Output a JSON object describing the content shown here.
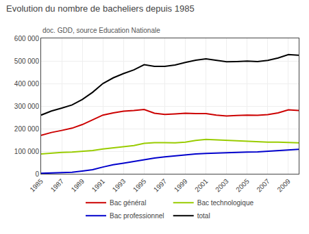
{
  "chart_data": {
    "type": "line",
    "title": "Evolution du nombre de bacheliers depuis 1985",
    "subtitle": "doc. GDD, source Education Nationale",
    "x": [
      1985,
      1986,
      1987,
      1988,
      1989,
      1990,
      1991,
      1992,
      1993,
      1994,
      1995,
      1996,
      1997,
      1998,
      1999,
      2000,
      2001,
      2002,
      2003,
      2004,
      2005,
      2006,
      2007,
      2008,
      2009,
      2010
    ],
    "series": [
      {
        "name": "Bac général",
        "color": "#cc0000",
        "values": [
          170000,
          183000,
          192000,
          202000,
          218000,
          240000,
          260000,
          270000,
          277000,
          280000,
          285000,
          268000,
          263000,
          265000,
          268000,
          267000,
          267000,
          260000,
          256000,
          258000,
          260000,
          259000,
          262000,
          270000,
          283000,
          280000
        ]
      },
      {
        "name": "Bac technologique",
        "color": "#99cc00",
        "values": [
          88000,
          92000,
          95000,
          96000,
          99000,
          103000,
          110000,
          115000,
          120000,
          125000,
          135000,
          138000,
          138000,
          137000,
          140000,
          148000,
          152000,
          150000,
          147000,
          145000,
          143000,
          141000,
          140000,
          140000,
          138000,
          137000
        ]
      },
      {
        "name": "Bac professionnel",
        "color": "#0000cc",
        "values": [
          2000,
          3000,
          4000,
          7000,
          12000,
          18000,
          30000,
          40000,
          47000,
          55000,
          63000,
          70000,
          75000,
          80000,
          85000,
          88000,
          90000,
          92000,
          93000,
          94000,
          96000,
          97000,
          100000,
          103000,
          107000,
          108000
        ]
      },
      {
        "name": "total",
        "color": "#000000",
        "values": [
          260000,
          278000,
          291000,
          305000,
          329000,
          361000,
          400000,
          425000,
          444000,
          460000,
          483000,
          476000,
          476000,
          482000,
          493000,
          503000,
          509000,
          502000,
          496000,
          497000,
          499000,
          497000,
          502000,
          513000,
          528000,
          525000
        ]
      }
    ],
    "xlim": [
      1985,
      2010
    ],
    "xticks": [
      1985,
      1987,
      1989,
      1991,
      1993,
      1995,
      1997,
      1999,
      2001,
      2003,
      2005,
      2007,
      2009
    ],
    "ylim": [
      0,
      600000
    ],
    "yticks": [
      0,
      {
        "value": 100000,
        "label": "100 000"
      },
      {
        "value": 200000,
        "label": "200 000"
      },
      {
        "value": 300000,
        "label": "300 000"
      },
      {
        "value": 400000,
        "label": "400 000"
      },
      {
        "value": 500000,
        "label": "500 000"
      },
      {
        "value": 600000,
        "label": "600 000"
      }
    ],
    "grid": true,
    "legend": "bottom"
  }
}
